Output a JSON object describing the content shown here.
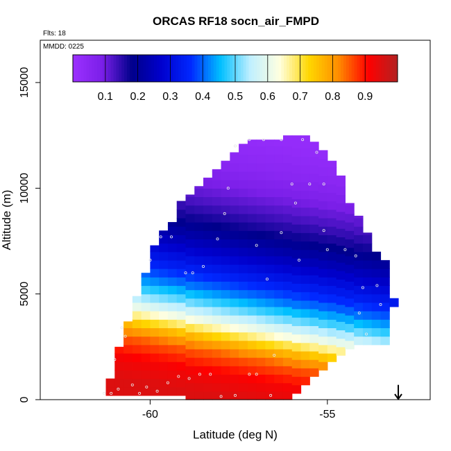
{
  "chart_data": {
    "type": "heatmap",
    "title": "ORCAS RF18 socn_air_FMPD",
    "flights_label": "Flts: 18",
    "date_label": "MMDD: 0225",
    "xlabel": "Latitude (deg N)",
    "ylabel": "Altitude (m)",
    "xlim": [
      -63.1,
      -52.1
    ],
    "ylim": [
      0,
      17000
    ],
    "x_ticks": [
      -60,
      -55
    ],
    "x_tick_labels": [
      "-60",
      "-55"
    ],
    "y_ticks": [
      0,
      5000,
      10000,
      15000
    ],
    "y_tick_labels": [
      "0",
      "5000",
      "10000",
      "15000"
    ],
    "colorbar": {
      "range": [
        0,
        1
      ],
      "ticks": [
        0.1,
        0.2,
        0.3,
        0.4,
        0.5,
        0.6,
        0.7,
        0.8,
        0.9
      ],
      "tick_labels": [
        "0.1",
        "0.2",
        "0.3",
        "0.4",
        "0.5",
        "0.6",
        "0.7",
        "0.8",
        "0.9"
      ],
      "colors": [
        "#9b30ff",
        "#7b1fe8",
        "#00008b",
        "#0000cd",
        "#0028ff",
        "#00bfff",
        "#bfefff",
        "#ffffe0",
        "#ffd700",
        "#ff8c00",
        "#ff0000",
        "#b22222"
      ]
    },
    "field": {
      "x_step_deg": 0.25,
      "y_step_m": 400,
      "envelope": [
        {
          "lat": -61.25,
          "bottom": 200,
          "top": 1000
        },
        {
          "lat": -61.0,
          "bottom": 200,
          "top": 2500
        },
        {
          "lat": -60.75,
          "bottom": 200,
          "top": 3700
        },
        {
          "lat": -60.5,
          "bottom": 200,
          "top": 4900
        },
        {
          "lat": -60.25,
          "bottom": 200,
          "top": 6000
        },
        {
          "lat": -60.0,
          "bottom": 200,
          "top": 7300
        },
        {
          "lat": -59.75,
          "bottom": 200,
          "top": 8000
        },
        {
          "lat": -59.5,
          "bottom": 200,
          "top": 8400
        },
        {
          "lat": -59.25,
          "bottom": 200,
          "top": 9400
        },
        {
          "lat": -59.0,
          "bottom": 0,
          "top": 9700
        },
        {
          "lat": -58.75,
          "bottom": 0,
          "top": 10100
        },
        {
          "lat": -58.5,
          "bottom": 0,
          "top": 10500
        },
        {
          "lat": -58.25,
          "bottom": 0,
          "top": 10900
        },
        {
          "lat": -58.0,
          "bottom": 0,
          "top": 11300
        },
        {
          "lat": -57.75,
          "bottom": 0,
          "top": 11700
        },
        {
          "lat": -57.5,
          "bottom": 0,
          "top": 12100
        },
        {
          "lat": -57.25,
          "bottom": 0,
          "top": 12300
        },
        {
          "lat": -57.0,
          "bottom": 0,
          "top": 12300
        },
        {
          "lat": -56.75,
          "bottom": 0,
          "top": 12300
        },
        {
          "lat": -56.5,
          "bottom": 0,
          "top": 12300
        },
        {
          "lat": -56.25,
          "bottom": 0,
          "top": 12500
        },
        {
          "lat": -56.0,
          "bottom": 300,
          "top": 12500
        },
        {
          "lat": -55.75,
          "bottom": 700,
          "top": 12500
        },
        {
          "lat": -55.5,
          "bottom": 1100,
          "top": 12200
        },
        {
          "lat": -55.25,
          "bottom": 1400,
          "top": 11800
        },
        {
          "lat": -55.0,
          "bottom": 1800,
          "top": 11300
        },
        {
          "lat": -54.75,
          "bottom": 2100,
          "top": 10600
        },
        {
          "lat": -54.5,
          "bottom": 2400,
          "top": 9300
        },
        {
          "lat": -54.25,
          "bottom": 2600,
          "top": 8700
        },
        {
          "lat": -54.0,
          "bottom": 2600,
          "top": 7900
        },
        {
          "lat": -53.75,
          "bottom": 2600,
          "top": 7000
        },
        {
          "lat": -53.5,
          "bottom": 2600,
          "top": 6600
        },
        {
          "lat": -53.25,
          "bottom": 4400,
          "top": 4800
        }
      ],
      "value_profile": [
        {
          "alt": 0,
          "value": 0.95
        },
        {
          "alt": 1000,
          "value": 0.92
        },
        {
          "alt": 2000,
          "value": 0.85
        },
        {
          "alt": 2600,
          "value": 0.77
        },
        {
          "alt": 3200,
          "value": 0.66
        },
        {
          "alt": 3800,
          "value": 0.56
        },
        {
          "alt": 4400,
          "value": 0.48
        },
        {
          "alt": 5000,
          "value": 0.41
        },
        {
          "alt": 5800,
          "value": 0.34
        },
        {
          "alt": 6600,
          "value": 0.28
        },
        {
          "alt": 7400,
          "value": 0.22
        },
        {
          "alt": 8200,
          "value": 0.17
        },
        {
          "alt": 9000,
          "value": 0.13
        },
        {
          "alt": 10000,
          "value": 0.09
        },
        {
          "alt": 11000,
          "value": 0.05
        },
        {
          "alt": 12500,
          "value": 0.02
        }
      ],
      "profile_tilt_m_per_deg": 300
    },
    "sample_points": [
      {
        "lat": -61.3,
        "alt": 300
      },
      {
        "lat": -61.1,
        "alt": 300
      },
      {
        "lat": -60.9,
        "alt": 500
      },
      {
        "lat": -60.5,
        "alt": 700
      },
      {
        "lat": -60.3,
        "alt": 300
      },
      {
        "lat": -60.1,
        "alt": 600
      },
      {
        "lat": -59.8,
        "alt": 400
      },
      {
        "lat": -59.5,
        "alt": 800
      },
      {
        "lat": -59.2,
        "alt": 1100
      },
      {
        "lat": -58.9,
        "alt": 1000
      },
      {
        "lat": -58.6,
        "alt": 1200
      },
      {
        "lat": -58.3,
        "alt": 1200
      },
      {
        "lat": -58.0,
        "alt": 150
      },
      {
        "lat": -57.6,
        "alt": 200
      },
      {
        "lat": -57.2,
        "alt": 1200
      },
      {
        "lat": -57.0,
        "alt": 1200
      },
      {
        "lat": -56.6,
        "alt": 200
      },
      {
        "lat": -56.5,
        "alt": 2100
      },
      {
        "lat": -61.0,
        "alt": 1900
      },
      {
        "lat": -60.8,
        "alt": 3400
      },
      {
        "lat": -60.7,
        "alt": 3000
      },
      {
        "lat": -60.0,
        "alt": 6600
      },
      {
        "lat": -59.7,
        "alt": 7700
      },
      {
        "lat": -59.4,
        "alt": 7700
      },
      {
        "lat": -59.0,
        "alt": 6000
      },
      {
        "lat": -58.8,
        "alt": 6000
      },
      {
        "lat": -58.5,
        "alt": 6300
      },
      {
        "lat": -58.1,
        "alt": 7600
      },
      {
        "lat": -57.9,
        "alt": 8800
      },
      {
        "lat": -57.8,
        "alt": 10000
      },
      {
        "lat": -57.6,
        "alt": 12000
      },
      {
        "lat": -57.2,
        "alt": 12300
      },
      {
        "lat": -56.8,
        "alt": 12300
      },
      {
        "lat": -56.3,
        "alt": 12300
      },
      {
        "lat": -55.7,
        "alt": 12300
      },
      {
        "lat": -55.3,
        "alt": 11700
      },
      {
        "lat": -56.0,
        "alt": 10200
      },
      {
        "lat": -55.9,
        "alt": 9300
      },
      {
        "lat": -55.5,
        "alt": 10200
      },
      {
        "lat": -55.1,
        "alt": 10200
      },
      {
        "lat": -55.0,
        "alt": 7100
      },
      {
        "lat": -54.5,
        "alt": 7100
      },
      {
        "lat": -54.2,
        "alt": 6800
      },
      {
        "lat": -53.6,
        "alt": 5400
      },
      {
        "lat": -53.5,
        "alt": 4500
      },
      {
        "lat": -54.0,
        "alt": 5300
      },
      {
        "lat": -54.1,
        "alt": 4100
      },
      {
        "lat": -53.9,
        "alt": 3100
      },
      {
        "lat": -55.1,
        "alt": 8000
      },
      {
        "lat": -56.3,
        "alt": 7900
      },
      {
        "lat": -57.0,
        "alt": 7300
      },
      {
        "lat": -56.7,
        "alt": 5700
      },
      {
        "lat": -55.8,
        "alt": 6600
      }
    ],
    "annotation_arrow": {
      "lat": -53.0,
      "from_alt": 700,
      "to_alt": 0
    }
  }
}
